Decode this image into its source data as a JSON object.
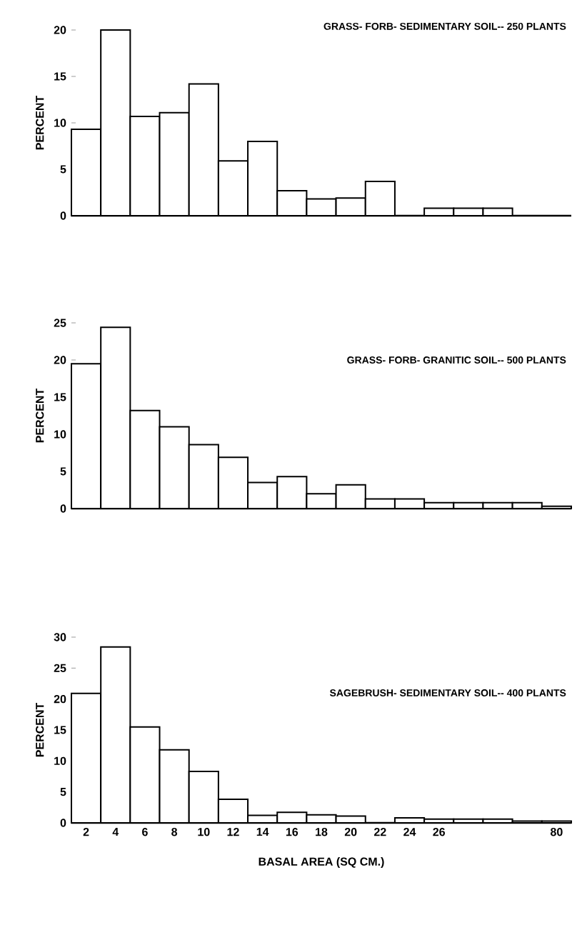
{
  "chart_data": [
    {
      "type": "bar",
      "title": "GRASS- FORB- SEDIMENTARY  SOIL-- 250 PLANTS",
      "ylabel": "PERCENT",
      "color": "#ffffff",
      "tick_labels": "y",
      "categories": [
        "2",
        "4",
        "6",
        "8",
        "10",
        "12",
        "14",
        "16",
        "18",
        "20",
        "22",
        "24",
        "26",
        null,
        null,
        null,
        "80"
      ],
      "values": [
        9.3,
        20.0,
        10.7,
        11.1,
        14.2,
        5.9,
        8.0,
        2.7,
        1.8,
        1.9,
        3.7,
        null,
        0.8,
        0.8,
        0.8,
        null,
        null
      ],
      "ylim": [
        0,
        20
      ],
      "yticks": [
        0,
        5,
        10,
        15,
        20
      ]
    },
    {
      "type": "bar",
      "title": "GRASS- FORB- GRANITIC  SOIL-- 500 PLANTS",
      "ylabel": "PERCENT",
      "color": "#ffffff",
      "tick_labels": "y",
      "categories": [
        "2",
        "4",
        "6",
        "8",
        "10",
        "12",
        "14",
        "16",
        "18",
        "20",
        "22",
        "24",
        "26",
        null,
        null,
        null,
        "80"
      ],
      "values": [
        19.5,
        24.4,
        13.2,
        11.0,
        8.6,
        6.9,
        3.5,
        4.3,
        2.0,
        3.2,
        1.3,
        1.3,
        0.8,
        0.8,
        0.8,
        0.8,
        0.3
      ],
      "ylim": [
        0,
        25
      ],
      "yticks": [
        0,
        5,
        10,
        15,
        20,
        25
      ]
    },
    {
      "type": "bar",
      "title": "SAGEBRUSH- SEDIMENTARY  SOIL-- 400 PLANTS",
      "ylabel": "PERCENT",
      "xlabel": "BASAL  AREA  (SQ  CM.)",
      "color": "#ffffff",
      "categories": [
        "2",
        "4",
        "6",
        "8",
        "10",
        "12",
        "14",
        "16",
        "18",
        "20",
        "22",
        "24",
        "26",
        null,
        null,
        null,
        "80"
      ],
      "values": [
        20.9,
        28.4,
        15.5,
        11.8,
        8.3,
        3.8,
        1.2,
        1.7,
        1.3,
        1.1,
        null,
        0.8,
        0.6,
        0.6,
        0.6,
        0.3,
        0.3
      ],
      "ylim": [
        0,
        30
      ],
      "yticks": [
        0,
        5,
        10,
        15,
        20,
        25,
        30
      ]
    }
  ]
}
